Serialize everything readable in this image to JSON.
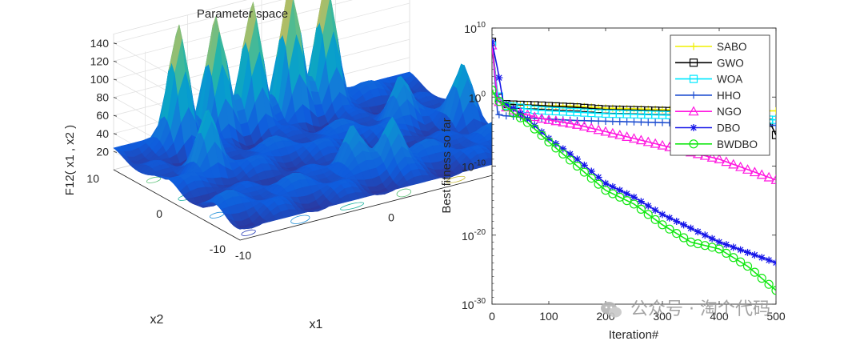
{
  "watermark": "公众号 · 淘个代码",
  "colors": {
    "SABO": "#f0f000",
    "GWO": "#000000",
    "WOA": "#00e8ff",
    "HHO": "#1f4fd1",
    "NGO": "#ff18e0",
    "DBO": "#1616e8",
    "BWDBO": "#13e813"
  },
  "chart_data": [
    {
      "type": "surface3d",
      "title": "Parameter space",
      "xlabel": "x1",
      "ylabel": "x2",
      "zlabel": "F12( x1 , x2 )",
      "xlim": [
        -10,
        10
      ],
      "ylim": [
        -10,
        10
      ],
      "zlim": [
        0,
        150
      ],
      "x_ticks": [
        "-10",
        "0",
        "10"
      ],
      "y_ticks": [
        "-10",
        "0",
        "10"
      ],
      "z_ticks": [
        "20",
        "40",
        "60",
        "80",
        "100",
        "120",
        "140"
      ],
      "colormap": "parula",
      "contour_on_floor": true,
      "peak_max": 150
    },
    {
      "type": "line",
      "xlabel": "Iteration#",
      "ylabel": "Best fitness so far",
      "xlim": [
        0,
        500
      ],
      "ylim_log10": [
        -30,
        10
      ],
      "yscale": "log",
      "x_ticks": [
        "0",
        "100",
        "200",
        "300",
        "400",
        "500"
      ],
      "y_ticks": [
        {
          "base": "10",
          "exp": "10",
          "value": 10
        },
        {
          "base": "10",
          "exp": "0",
          "value": 0
        },
        {
          "base": "10",
          "exp": "-10",
          "value": -10
        },
        {
          "base": "10",
          "exp": "-20",
          "value": -20
        },
        {
          "base": "10",
          "exp": "-30",
          "value": -30
        }
      ],
      "legend_position": "top-right",
      "series": [
        {
          "name": "SABO",
          "marker": "plus",
          "x": [
            0,
            10,
            20,
            40,
            60,
            80,
            100,
            150,
            200,
            250,
            300,
            350,
            400,
            450,
            500
          ],
          "log10_y": [
            8,
            0.2,
            -1.0,
            -1.1,
            -1.15,
            -1.2,
            -1.25,
            -1.3,
            -1.6,
            -1.7,
            -1.8,
            -1.9,
            -2.0,
            -2.0,
            -2.0
          ]
        },
        {
          "name": "GWO",
          "marker": "square",
          "x": [
            0,
            10,
            20,
            40,
            60,
            80,
            100,
            150,
            200,
            250,
            300,
            350,
            400,
            450,
            480,
            490,
            500
          ],
          "log10_y": [
            8,
            0.2,
            -1.0,
            -1.1,
            -1.15,
            -1.2,
            -1.3,
            -1.5,
            -1.8,
            -1.9,
            -2.0,
            -2.1,
            -2.2,
            -2.3,
            -3.5,
            -3.8,
            -5.5
          ]
        },
        {
          "name": "WOA",
          "marker": "square",
          "x": [
            0,
            10,
            20,
            40,
            60,
            80,
            100,
            150,
            200,
            250,
            300,
            350,
            400,
            450,
            500
          ],
          "log10_y": [
            7.5,
            0.5,
            -1.2,
            -1.4,
            -1.7,
            -1.9,
            -2.0,
            -2.2,
            -2.4,
            -2.5,
            -2.6,
            -2.7,
            -2.8,
            -3.2,
            -3.3
          ]
        },
        {
          "name": "HHO",
          "marker": "plus",
          "x": [
            0,
            10,
            20,
            40,
            60,
            80,
            100,
            150,
            200,
            250,
            300,
            350,
            400,
            450,
            500
          ],
          "log10_y": [
            8,
            -2.5,
            -2.7,
            -2.8,
            -3.0,
            -3.1,
            -3.2,
            -3.4,
            -3.5,
            -3.6,
            -3.7,
            -3.8,
            -3.9,
            -4.0,
            -4.1
          ]
        },
        {
          "name": "NGO",
          "marker": "triangle",
          "x": [
            0,
            10,
            20,
            40,
            60,
            80,
            100,
            150,
            200,
            250,
            300,
            350,
            400,
            450,
            500
          ],
          "log10_y": [
            7.5,
            -0.5,
            -1.3,
            -2.0,
            -2.5,
            -3.0,
            -3.3,
            -4.0,
            -5.0,
            -6.0,
            -7.0,
            -8.0,
            -9.0,
            -10.5,
            -12.0
          ]
        },
        {
          "name": "DBO",
          "marker": "asterisk",
          "x": [
            0,
            10,
            20,
            40,
            60,
            80,
            100,
            150,
            200,
            250,
            300,
            350,
            400,
            450,
            500
          ],
          "log10_y": [
            8,
            4,
            -0.8,
            -1.8,
            -3.0,
            -4.5,
            -6.0,
            -9.0,
            -12.5,
            -14.5,
            -17.0,
            -19.0,
            -21.0,
            -22.5,
            -24.0
          ]
        },
        {
          "name": "BWDBO",
          "marker": "circle",
          "x": [
            0,
            10,
            20,
            40,
            60,
            80,
            100,
            150,
            200,
            250,
            300,
            350,
            400,
            450,
            500
          ],
          "log10_y": [
            1,
            -0.5,
            -1.0,
            -2.5,
            -3.5,
            -5.0,
            -6.5,
            -10.0,
            -13.5,
            -15.5,
            -18.5,
            -21.0,
            -22.0,
            -24.5,
            -28.0
          ]
        }
      ]
    }
  ]
}
